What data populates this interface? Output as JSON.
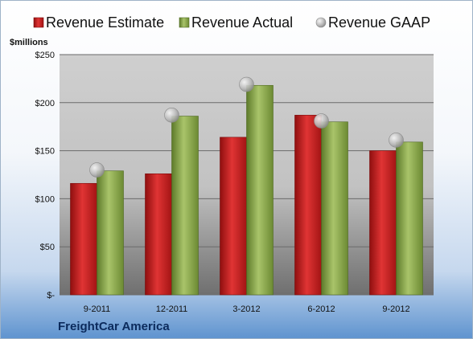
{
  "chart_data": {
    "type": "bar",
    "categories": [
      "9-2011",
      "12-2011",
      "3-2012",
      "6-2012",
      "9-2012"
    ],
    "series": [
      {
        "name": "Revenue Estimate",
        "kind": "bar",
        "color": "#cc1f1f",
        "values": [
          116,
          126,
          164,
          187,
          150
        ]
      },
      {
        "name": "Revenue Actual",
        "kind": "bar",
        "color": "#8aa84a",
        "values": [
          129,
          186,
          218,
          180,
          159
        ]
      },
      {
        "name": "Revenue GAAP",
        "kind": "marker",
        "color": "#b9b9b9",
        "values": [
          130,
          187,
          219,
          181,
          161
        ]
      }
    ],
    "ylabel": "$millions",
    "ylim": [
      0,
      250
    ],
    "yticks": [
      0,
      50,
      100,
      150,
      200,
      250
    ],
    "ytick_labels": [
      "$-",
      "$50",
      "$100",
      "$150",
      "$200",
      "$250"
    ],
    "grid": true,
    "legend_position": "top"
  },
  "footer": {
    "company": "FreightCar America"
  }
}
